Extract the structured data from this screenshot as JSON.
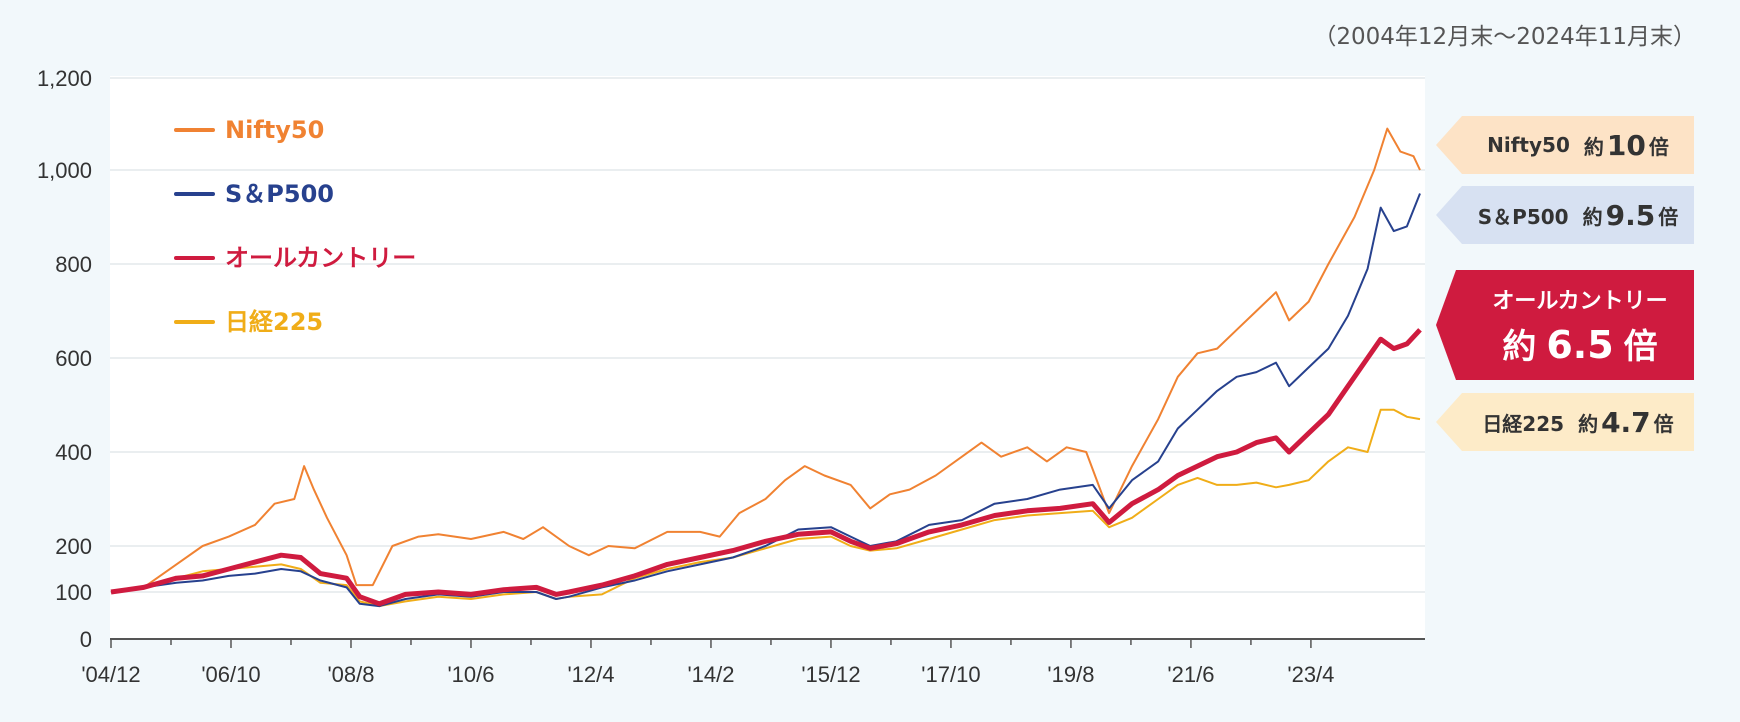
{
  "period_label": "（2004年12月末～2024年11月末）",
  "colors": {
    "nifty": "#f08232",
    "sp500": "#27418e",
    "allcountry": "#cf1b3f",
    "nikkei": "#f0ad18",
    "grid": "#e4e8ec",
    "axis": "#555555"
  },
  "callouts": [
    {
      "name": "Nifty50",
      "prefix": "約",
      "multiple": "10",
      "suffix": "倍",
      "bg": "#fde3c6"
    },
    {
      "name": "S＆P500",
      "prefix": "約",
      "multiple": "9.5",
      "suffix": "倍",
      "bg": "#d7e1f2"
    },
    {
      "name": "オールカントリー",
      "prefix": "約",
      "multiple": "6.5",
      "suffix": "倍",
      "bg": "#cf1b3f"
    },
    {
      "name": "日経225",
      "prefix": "約",
      "multiple": "4.7",
      "suffix": "倍",
      "bg": "#fdebc8"
    }
  ],
  "chart_data": {
    "type": "line",
    "x_ticks": [
      "'04/12",
      "'06/10",
      "'08/8",
      "'10/6",
      "'12/4",
      "'14/2",
      "'15/12",
      "'17/10",
      "'19/8",
      "'21/6",
      "'23/4"
    ],
    "x_range": [
      "2004-12",
      "2024-11"
    ],
    "y_ticks": [
      "0",
      "100",
      "200",
      "400",
      "600",
      "800",
      "1,000",
      "1,200"
    ],
    "ylim": [
      0,
      1200
    ],
    "grid": true,
    "legend_position": "top-left",
    "series": [
      {
        "name": "Nifty50",
        "color_key": "nifty",
        "width": 2,
        "points": [
          [
            0,
            100
          ],
          [
            0.5,
            110
          ],
          [
            1,
            160
          ],
          [
            1.4,
            200
          ],
          [
            1.8,
            220
          ],
          [
            2.2,
            245
          ],
          [
            2.5,
            290
          ],
          [
            2.8,
            300
          ],
          [
            2.95,
            370
          ],
          [
            3.1,
            320
          ],
          [
            3.3,
            260
          ],
          [
            3.6,
            180
          ],
          [
            3.75,
            115
          ],
          [
            4,
            115
          ],
          [
            4.3,
            200
          ],
          [
            4.7,
            220
          ],
          [
            5,
            225
          ],
          [
            5.5,
            215
          ],
          [
            6,
            230
          ],
          [
            6.3,
            215
          ],
          [
            6.6,
            240
          ],
          [
            7,
            200
          ],
          [
            7.3,
            180
          ],
          [
            7.6,
            200
          ],
          [
            8,
            195
          ],
          [
            8.5,
            230
          ],
          [
            9,
            230
          ],
          [
            9.3,
            220
          ],
          [
            9.6,
            270
          ],
          [
            10,
            300
          ],
          [
            10.3,
            340
          ],
          [
            10.6,
            370
          ],
          [
            10.9,
            350
          ],
          [
            11.3,
            330
          ],
          [
            11.6,
            280
          ],
          [
            11.9,
            310
          ],
          [
            12.2,
            320
          ],
          [
            12.6,
            350
          ],
          [
            13,
            390
          ],
          [
            13.3,
            420
          ],
          [
            13.6,
            390
          ],
          [
            14,
            410
          ],
          [
            14.3,
            380
          ],
          [
            14.6,
            410
          ],
          [
            14.9,
            400
          ],
          [
            15.25,
            270
          ],
          [
            15.6,
            370
          ],
          [
            16,
            470
          ],
          [
            16.3,
            560
          ],
          [
            16.6,
            610
          ],
          [
            16.9,
            620
          ],
          [
            17.2,
            660
          ],
          [
            17.5,
            700
          ],
          [
            17.8,
            740
          ],
          [
            18,
            680
          ],
          [
            18.3,
            720
          ],
          [
            18.6,
            800
          ],
          [
            19,
            900
          ],
          [
            19.3,
            1000
          ],
          [
            19.5,
            1090
          ],
          [
            19.7,
            1040
          ],
          [
            19.9,
            1030
          ],
          [
            20,
            1000
          ]
        ]
      },
      {
        "name": "S＆P500",
        "color_key": "sp500",
        "width": 2,
        "points": [
          [
            0,
            100
          ],
          [
            0.5,
            110
          ],
          [
            1,
            120
          ],
          [
            1.4,
            125
          ],
          [
            1.8,
            135
          ],
          [
            2.2,
            140
          ],
          [
            2.6,
            150
          ],
          [
            2.9,
            145
          ],
          [
            3.2,
            125
          ],
          [
            3.6,
            110
          ],
          [
            3.8,
            75
          ],
          [
            4.1,
            70
          ],
          [
            4.5,
            85
          ],
          [
            5,
            95
          ],
          [
            5.5,
            90
          ],
          [
            6,
            100
          ],
          [
            6.5,
            100
          ],
          [
            6.8,
            85
          ],
          [
            7,
            90
          ],
          [
            7.5,
            110
          ],
          [
            8,
            125
          ],
          [
            8.5,
            145
          ],
          [
            9,
            160
          ],
          [
            9.5,
            175
          ],
          [
            10,
            200
          ],
          [
            10.5,
            235
          ],
          [
            11,
            240
          ],
          [
            11.3,
            220
          ],
          [
            11.6,
            200
          ],
          [
            12,
            210
          ],
          [
            12.5,
            245
          ],
          [
            13,
            255
          ],
          [
            13.5,
            290
          ],
          [
            14,
            300
          ],
          [
            14.5,
            320
          ],
          [
            15,
            330
          ],
          [
            15.25,
            280
          ],
          [
            15.6,
            340
          ],
          [
            16,
            380
          ],
          [
            16.3,
            450
          ],
          [
            16.6,
            490
          ],
          [
            16.9,
            530
          ],
          [
            17.2,
            560
          ],
          [
            17.5,
            570
          ],
          [
            17.8,
            590
          ],
          [
            18,
            540
          ],
          [
            18.3,
            580
          ],
          [
            18.6,
            620
          ],
          [
            18.9,
            690
          ],
          [
            19.2,
            790
          ],
          [
            19.4,
            920
          ],
          [
            19.6,
            870
          ],
          [
            19.8,
            880
          ],
          [
            20,
            950
          ]
        ]
      },
      {
        "name": "オールカントリー",
        "color_key": "allcountry",
        "width": 5,
        "points": [
          [
            0,
            100
          ],
          [
            0.5,
            110
          ],
          [
            1,
            130
          ],
          [
            1.4,
            135
          ],
          [
            1.8,
            150
          ],
          [
            2.2,
            165
          ],
          [
            2.6,
            180
          ],
          [
            2.9,
            175
          ],
          [
            3.2,
            140
          ],
          [
            3.6,
            130
          ],
          [
            3.8,
            90
          ],
          [
            4.1,
            75
          ],
          [
            4.5,
            95
          ],
          [
            5,
            100
          ],
          [
            5.5,
            95
          ],
          [
            6,
            105
          ],
          [
            6.5,
            110
          ],
          [
            6.8,
            95
          ],
          [
            7,
            100
          ],
          [
            7.5,
            115
          ],
          [
            8,
            135
          ],
          [
            8.5,
            160
          ],
          [
            9,
            175
          ],
          [
            9.5,
            190
          ],
          [
            10,
            210
          ],
          [
            10.5,
            225
          ],
          [
            11,
            230
          ],
          [
            11.3,
            210
          ],
          [
            11.6,
            195
          ],
          [
            12,
            205
          ],
          [
            12.5,
            230
          ],
          [
            13,
            245
          ],
          [
            13.5,
            265
          ],
          [
            14,
            275
          ],
          [
            14.5,
            280
          ],
          [
            15,
            290
          ],
          [
            15.25,
            250
          ],
          [
            15.6,
            290
          ],
          [
            16,
            320
          ],
          [
            16.3,
            350
          ],
          [
            16.6,
            370
          ],
          [
            16.9,
            390
          ],
          [
            17.2,
            400
          ],
          [
            17.5,
            420
          ],
          [
            17.8,
            430
          ],
          [
            18,
            400
          ],
          [
            18.3,
            440
          ],
          [
            18.6,
            480
          ],
          [
            18.9,
            540
          ],
          [
            19.2,
            600
          ],
          [
            19.4,
            640
          ],
          [
            19.6,
            620
          ],
          [
            19.8,
            630
          ],
          [
            20,
            660
          ]
        ]
      },
      {
        "name": "日経225",
        "color_key": "nikkei",
        "width": 2,
        "points": [
          [
            0,
            100
          ],
          [
            0.5,
            110
          ],
          [
            1,
            130
          ],
          [
            1.4,
            145
          ],
          [
            1.8,
            150
          ],
          [
            2.2,
            155
          ],
          [
            2.6,
            160
          ],
          [
            2.9,
            150
          ],
          [
            3.2,
            120
          ],
          [
            3.6,
            115
          ],
          [
            3.8,
            80
          ],
          [
            4.1,
            70
          ],
          [
            4.5,
            80
          ],
          [
            5,
            90
          ],
          [
            5.5,
            85
          ],
          [
            6,
            95
          ],
          [
            6.5,
            100
          ],
          [
            6.8,
            85
          ],
          [
            7,
            90
          ],
          [
            7.5,
            95
          ],
          [
            8,
            130
          ],
          [
            8.5,
            150
          ],
          [
            9,
            165
          ],
          [
            9.5,
            175
          ],
          [
            10,
            195
          ],
          [
            10.5,
            215
          ],
          [
            11,
            220
          ],
          [
            11.3,
            200
          ],
          [
            11.6,
            190
          ],
          [
            12,
            195
          ],
          [
            12.5,
            215
          ],
          [
            13,
            235
          ],
          [
            13.5,
            255
          ],
          [
            14,
            265
          ],
          [
            14.5,
            270
          ],
          [
            15,
            275
          ],
          [
            15.25,
            240
          ],
          [
            15.6,
            260
          ],
          [
            16,
            300
          ],
          [
            16.3,
            330
          ],
          [
            16.6,
            345
          ],
          [
            16.9,
            330
          ],
          [
            17.2,
            330
          ],
          [
            17.5,
            335
          ],
          [
            17.8,
            325
          ],
          [
            18,
            330
          ],
          [
            18.3,
            340
          ],
          [
            18.6,
            380
          ],
          [
            18.9,
            410
          ],
          [
            19.2,
            400
          ],
          [
            19.4,
            490
          ],
          [
            19.6,
            490
          ],
          [
            19.8,
            475
          ],
          [
            20,
            470
          ]
        ]
      }
    ]
  }
}
